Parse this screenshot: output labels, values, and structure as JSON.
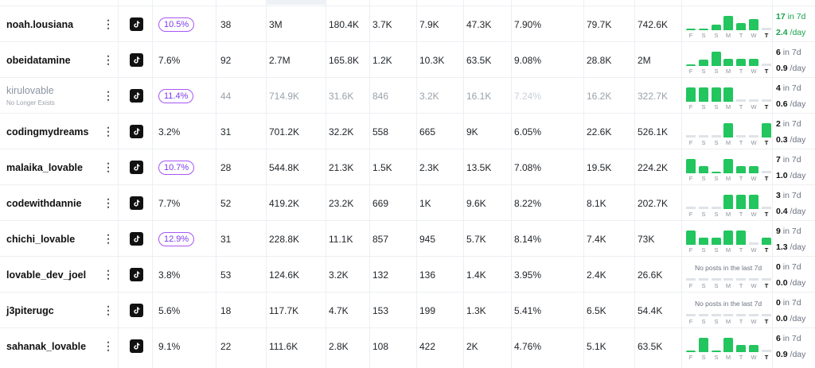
{
  "colors": {
    "accent_green": "#22c55e",
    "pill_purple": "#7c3aed"
  },
  "day_labels": [
    "F",
    "S",
    "S",
    "M",
    "T",
    "W",
    "T"
  ],
  "no_posts_text": "No posts in the last 7d",
  "rows": [
    {
      "name": "noah.lousiana",
      "sub": "",
      "eng": "10.5%",
      "eng_pill": true,
      "posts": "38",
      "views": "3M",
      "likes": "180.4K",
      "comments": "3.7K",
      "shares": "7.9K",
      "saves": "47.3K",
      "er": "7.90%",
      "avg": "79.7K",
      "med": "742.6K",
      "bars": [
        0.06,
        0.06,
        0.35,
        0.9,
        0.45,
        0.7,
        0
      ],
      "count": "17",
      "count_suffix": " in 7d",
      "rate": "2.4",
      "rate_suffix": " /day",
      "highlight": true,
      "no_posts": false
    },
    {
      "name": "obeidatamine",
      "sub": "",
      "eng": "7.6%",
      "eng_pill": false,
      "posts": "92",
      "views": "2.7M",
      "likes": "165.8K",
      "comments": "1.2K",
      "shares": "10.3K",
      "saves": "63.5K",
      "er": "9.08%",
      "avg": "28.8K",
      "med": "2M",
      "bars": [
        0.06,
        0.4,
        0.9,
        0.45,
        0.45,
        0.45,
        0
      ],
      "count": "6",
      "count_suffix": " in 7d",
      "rate": "0.9",
      "rate_suffix": " /day",
      "highlight": false,
      "no_posts": false
    },
    {
      "name": "kirulovable",
      "sub": "No Longer Exists",
      "eng": "11.4%",
      "eng_pill": true,
      "posts": "44",
      "views": "714.9K",
      "likes": "31.6K",
      "comments": "846",
      "shares": "3.2K",
      "saves": "16.1K",
      "er": "7.24%",
      "avg": "16.2K",
      "med": "322.7K",
      "bars": [
        0.9,
        0.9,
        0.9,
        0.9,
        0,
        0,
        0
      ],
      "count": "4",
      "count_suffix": " in 7d",
      "rate": "0.6",
      "rate_suffix": " /day",
      "highlight": false,
      "no_posts": false,
      "faded": true
    },
    {
      "name": "codingmydreams",
      "sub": "",
      "eng": "3.2%",
      "eng_pill": false,
      "posts": "31",
      "views": "701.2K",
      "likes": "32.2K",
      "comments": "558",
      "shares": "665",
      "saves": "9K",
      "er": "6.05%",
      "avg": "22.6K",
      "med": "526.1K",
      "bars": [
        0,
        0,
        0,
        0.9,
        0,
        0,
        0.9
      ],
      "count": "2",
      "count_suffix": " in 7d",
      "rate": "0.3",
      "rate_suffix": " /day",
      "highlight": false,
      "no_posts": false
    },
    {
      "name": "malaika_lovable",
      "sub": "",
      "eng": "10.7%",
      "eng_pill": true,
      "posts": "28",
      "views": "544.8K",
      "likes": "21.3K",
      "comments": "1.5K",
      "shares": "2.3K",
      "saves": "13.5K",
      "er": "7.08%",
      "avg": "19.5K",
      "med": "224.2K",
      "bars": [
        0.9,
        0.45,
        0.06,
        0.9,
        0.45,
        0.45,
        0
      ],
      "count": "7",
      "count_suffix": " in 7d",
      "rate": "1.0",
      "rate_suffix": " /day",
      "highlight": false,
      "no_posts": false
    },
    {
      "name": "codewithdannie",
      "sub": "",
      "eng": "7.7%",
      "eng_pill": false,
      "posts": "52",
      "views": "419.2K",
      "likes": "23.2K",
      "comments": "669",
      "shares": "1K",
      "saves": "9.6K",
      "er": "8.22%",
      "avg": "8.1K",
      "med": "202.7K",
      "bars": [
        0,
        0,
        0,
        0.9,
        0.9,
        0.9,
        0
      ],
      "count": "3",
      "count_suffix": " in 7d",
      "rate": "0.4",
      "rate_suffix": " /day",
      "highlight": false,
      "no_posts": false
    },
    {
      "name": "chichi_lovable",
      "sub": "",
      "eng": "12.9%",
      "eng_pill": true,
      "posts": "31",
      "views": "228.8K",
      "likes": "11.1K",
      "comments": "857",
      "shares": "945",
      "saves": "5.7K",
      "er": "8.14%",
      "avg": "7.4K",
      "med": "73K",
      "bars": [
        0.9,
        0.45,
        0.45,
        0.9,
        0.9,
        0,
        0.45
      ],
      "count": "9",
      "count_suffix": " in 7d",
      "rate": "1.3",
      "rate_suffix": " /day",
      "highlight": false,
      "no_posts": false
    },
    {
      "name": "lovable_dev_joel",
      "sub": "",
      "eng": "3.8%",
      "eng_pill": false,
      "posts": "53",
      "views": "124.6K",
      "likes": "3.2K",
      "comments": "132",
      "shares": "136",
      "saves": "1.4K",
      "er": "3.95%",
      "avg": "2.4K",
      "med": "26.6K",
      "bars": [
        0,
        0,
        0,
        0,
        0,
        0,
        0
      ],
      "count": "0",
      "count_suffix": " in 7d",
      "rate": "0.0",
      "rate_suffix": " /day",
      "highlight": false,
      "no_posts": true
    },
    {
      "name": "j3piterugc",
      "sub": "",
      "eng": "5.6%",
      "eng_pill": false,
      "posts": "18",
      "views": "117.7K",
      "likes": "4.7K",
      "comments": "153",
      "shares": "199",
      "saves": "1.3K",
      "er": "5.41%",
      "avg": "6.5K",
      "med": "54.4K",
      "bars": [
        0,
        0,
        0,
        0,
        0,
        0,
        0
      ],
      "count": "0",
      "count_suffix": " in 7d",
      "rate": "0.0",
      "rate_suffix": " /day",
      "highlight": false,
      "no_posts": true
    },
    {
      "name": "sahanak_lovable",
      "sub": "",
      "eng": "9.1%",
      "eng_pill": false,
      "posts": "22",
      "views": "111.6K",
      "likes": "2.8K",
      "comments": "108",
      "shares": "422",
      "saves": "2K",
      "er": "4.76%",
      "avg": "5.1K",
      "med": "63.5K",
      "bars": [
        0.06,
        0.9,
        0.06,
        0.9,
        0.45,
        0.45,
        0
      ],
      "count": "6",
      "count_suffix": " in 7d",
      "rate": "0.9",
      "rate_suffix": " /day",
      "highlight": false,
      "no_posts": false
    }
  ]
}
